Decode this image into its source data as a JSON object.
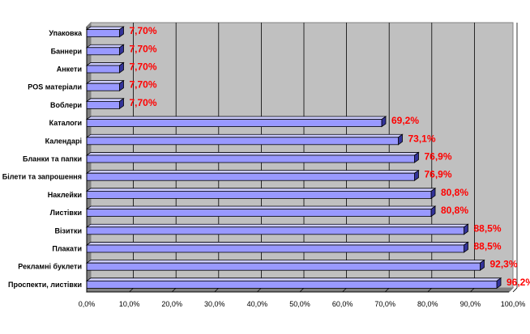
{
  "chart_data": {
    "type": "bar",
    "orientation": "horizontal",
    "categories": [
      "Упаковка",
      "Баннери",
      "Анкети",
      "POS матеріали",
      "Воблери",
      "Каталоги",
      "Календарі",
      "Бланки та папки",
      "Білети та запрошення",
      "Наклейки",
      "Листівки",
      "Візитки",
      "Плакати",
      "Рекламні буклети",
      "Проспекти, листівки"
    ],
    "values": [
      7.7,
      7.7,
      7.7,
      7.7,
      7.7,
      69.2,
      73.1,
      76.9,
      76.9,
      80.8,
      80.8,
      88.5,
      88.5,
      92.3,
      96.2
    ],
    "data_labels": [
      "7,70%",
      "7,70%",
      "7,70%",
      "7,70%",
      "7,70%",
      "69,2%",
      "73,1%",
      "76,9%",
      "76,9%",
      "80,8%",
      "80,8%",
      "88,5%",
      "88,5%",
      "92,3%",
      "96,2%"
    ],
    "x_ticks": [
      "0,0%",
      "10,0%",
      "20,0%",
      "30,0%",
      "40,0%",
      "50,0%",
      "60,0%",
      "70,0%",
      "80,0%",
      "90,0%",
      "100,0%"
    ],
    "xlim": [
      0,
      100
    ],
    "grid": true,
    "legend": "none",
    "colors": {
      "plot_background": "#c0c0c0",
      "bar_face": "#9999ff",
      "bar_top": "#ccccff",
      "bar_side": "#333399",
      "bar_outline": "#000000",
      "data_label": "#ff0000",
      "gridline": "#000000"
    }
  }
}
